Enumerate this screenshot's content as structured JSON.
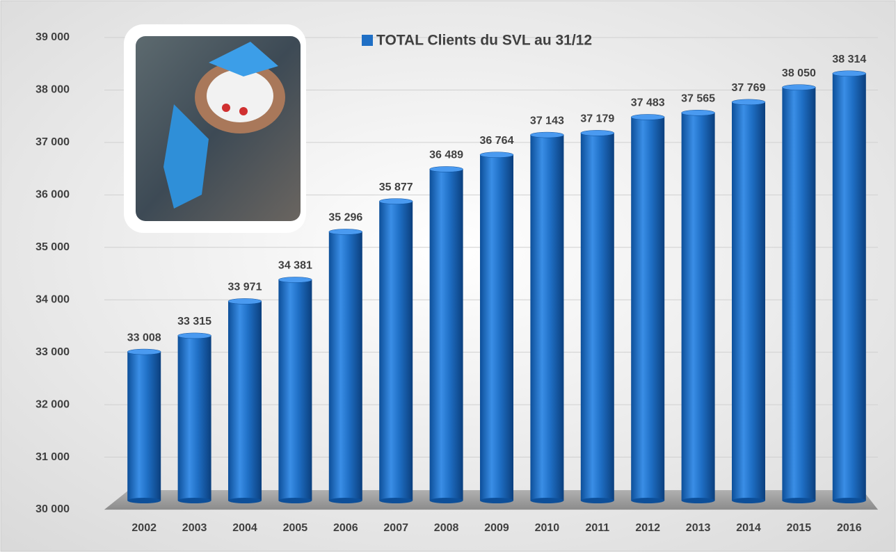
{
  "chart_data": {
    "type": "bar",
    "categories": [
      "2002",
      "2003",
      "2004",
      "2005",
      "2006",
      "2007",
      "2008",
      "2009",
      "2010",
      "2011",
      "2012",
      "2013",
      "2014",
      "2015",
      "2016"
    ],
    "series": [
      {
        "name": "TOTAL Clients du SVL au 31/12",
        "color": "#1f6fc5",
        "values": [
          33008,
          33315,
          33971,
          34381,
          35296,
          35877,
          36489,
          36764,
          37143,
          37179,
          37483,
          37565,
          37769,
          38050,
          38314
        ],
        "value_labels": [
          "33 008",
          "33 315",
          "33 971",
          "34 381",
          "35 296",
          "35 877",
          "36 489",
          "36 764",
          "37 143",
          "37 179",
          "37 483",
          "37 565",
          "37 769",
          "38 050",
          "38 314"
        ]
      }
    ],
    "ylim": [
      30000,
      39000
    ],
    "yticks": [
      {
        "value": 30000,
        "label": "30 000"
      },
      {
        "value": 31000,
        "label": "31 000"
      },
      {
        "value": 32000,
        "label": "32 000"
      },
      {
        "value": 33000,
        "label": "33 000"
      },
      {
        "value": 34000,
        "label": "34 000"
      },
      {
        "value": 35000,
        "label": "35 000"
      },
      {
        "value": 36000,
        "label": "36 000"
      },
      {
        "value": 37000,
        "label": "37 000"
      },
      {
        "value": 38000,
        "label": "38 000"
      },
      {
        "value": 39000,
        "label": "39 000"
      }
    ],
    "grid": true,
    "legend": "top"
  }
}
